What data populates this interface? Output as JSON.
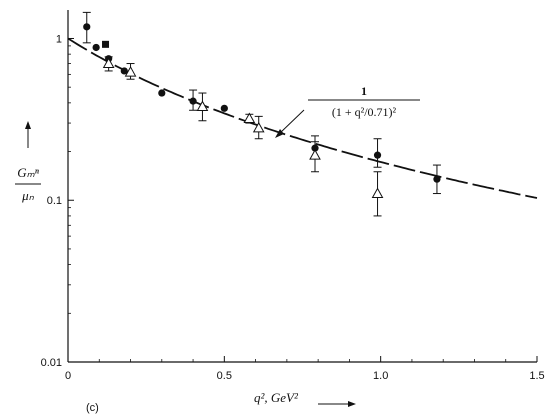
{
  "chart_data": {
    "type": "scatter",
    "panel_label": "(c)",
    "xlabel": "q², GeV²",
    "ylabel_numerator": "Gₘⁿ",
    "ylabel_denominator": "μₙ",
    "x_scale": "linear",
    "y_scale": "log",
    "xlim": [
      0,
      1.5
    ],
    "ylim": [
      0.01,
      1.5
    ],
    "x_ticks": [
      {
        "value": 0,
        "label": "0"
      },
      {
        "value": 0.5,
        "label": "0.5"
      },
      {
        "value": 1.0,
        "label": "1.0"
      },
      {
        "value": 1.5,
        "label": "1.5"
      }
    ],
    "y_ticks": [
      {
        "value": 1,
        "label": "1"
      },
      {
        "value": 0.1,
        "label": "0.1"
      },
      {
        "value": 0.01,
        "label": "0.01"
      }
    ],
    "grid": false,
    "curve": {
      "label_numerator": "1",
      "label_denominator": "(1 + q²/0.71)²",
      "style": "dashed",
      "formula": "1/(1+x/0.71)^2"
    },
    "series": [
      {
        "marker": "filled-circle",
        "points": [
          {
            "x": 0.06,
            "y": 1.18,
            "err": [
              0.94,
              1.45
            ]
          },
          {
            "x": 0.09,
            "y": 0.88
          },
          {
            "x": 0.13,
            "y": 0.75
          },
          {
            "x": 0.18,
            "y": 0.63
          },
          {
            "x": 0.3,
            "y": 0.46
          },
          {
            "x": 0.4,
            "y": 0.41,
            "err": [
              0.36,
              0.48
            ]
          },
          {
            "x": 0.5,
            "y": 0.37
          },
          {
            "x": 0.79,
            "y": 0.21,
            "err": [
              0.18,
              0.25
            ]
          },
          {
            "x": 0.99,
            "y": 0.19,
            "err": [
              0.16,
              0.24
            ]
          },
          {
            "x": 1.18,
            "y": 0.135,
            "err": [
              0.11,
              0.165
            ]
          }
        ]
      },
      {
        "marker": "filled-square",
        "points": [
          {
            "x": 0.12,
            "y": 0.92
          }
        ]
      },
      {
        "marker": "open-triangle",
        "points": [
          {
            "x": 0.13,
            "y": 0.7,
            "err": [
              0.63,
              0.77
            ]
          },
          {
            "x": 0.2,
            "y": 0.62,
            "err": [
              0.56,
              0.7
            ]
          },
          {
            "x": 0.43,
            "y": 0.38,
            "err": [
              0.31,
              0.46
            ]
          },
          {
            "x": 0.58,
            "y": 0.32,
            "err": [
              0.3,
              0.34
            ]
          },
          {
            "x": 0.61,
            "y": 0.28,
            "err": [
              0.24,
              0.33
            ]
          },
          {
            "x": 0.79,
            "y": 0.19,
            "err": [
              0.15,
              0.23
            ]
          },
          {
            "x": 0.99,
            "y": 0.11,
            "err": [
              0.08,
              0.15
            ]
          }
        ]
      }
    ]
  }
}
